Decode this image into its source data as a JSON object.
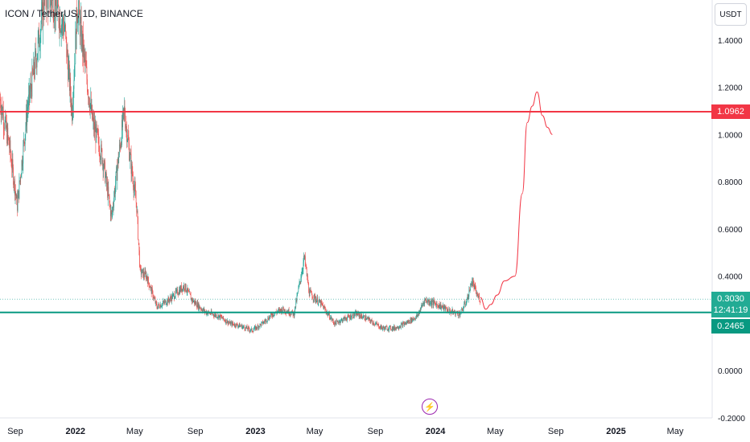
{
  "header": {
    "title": "ICON / TetherUS, 1D, BINANCE"
  },
  "axis_unit": "USDT",
  "colors": {
    "up": "#26a69a",
    "down": "#ef5350",
    "resistance": "#f23645",
    "support": "#089981",
    "projection": "#f23645",
    "event": "#9c27b0"
  },
  "chart_data": {
    "type": "candlestick",
    "ylim": [
      -0.2,
      1.6
    ],
    "y_ticks": [
      -0.2,
      0.0,
      0.2,
      0.4,
      0.6,
      0.8,
      1.0,
      1.2,
      1.4
    ],
    "y_tick_labels": [
      "-0.2000",
      "0.0000",
      "0.2000",
      "0.4000",
      "0.6000",
      "0.8000",
      "1.0000",
      "1.2000",
      "1.4000"
    ],
    "x_range": [
      "2021-08-01",
      "2025-07-15"
    ],
    "x_ticks": [
      {
        "date": "2021-09-01",
        "label": "Sep",
        "bold": false
      },
      {
        "date": "2022-01-01",
        "label": "2022",
        "bold": true
      },
      {
        "date": "2022-05-01",
        "label": "May",
        "bold": false
      },
      {
        "date": "2022-09-01",
        "label": "Sep",
        "bold": false
      },
      {
        "date": "2023-01-01",
        "label": "2023",
        "bold": true
      },
      {
        "date": "2023-05-01",
        "label": "May",
        "bold": false
      },
      {
        "date": "2023-09-01",
        "label": "Sep",
        "bold": false
      },
      {
        "date": "2024-01-01",
        "label": "2024",
        "bold": true
      },
      {
        "date": "2024-05-01",
        "label": "May",
        "bold": false
      },
      {
        "date": "2024-09-01",
        "label": "Sep",
        "bold": false
      },
      {
        "date": "2025-01-01",
        "label": "2025",
        "bold": true
      },
      {
        "date": "2025-05-01",
        "label": "May",
        "bold": false
      }
    ],
    "horizontal_lines": [
      {
        "name": "resistance",
        "value": 1.0962,
        "label": "1.0962"
      },
      {
        "name": "support",
        "value": 0.2465,
        "label": "0.2465"
      }
    ],
    "current_price": {
      "value": 0.303,
      "label": "0.3030",
      "countdown": "12:41:19"
    },
    "price_path": [
      [
        "2021-08-01",
        1.15
      ],
      [
        "2021-08-20",
        0.95
      ],
      [
        "2021-09-05",
        0.7
      ],
      [
        "2021-09-25",
        1.1
      ],
      [
        "2021-10-15",
        1.35
      ],
      [
        "2021-11-01",
        1.6
      ],
      [
        "2021-11-20",
        1.55
      ],
      [
        "2021-12-10",
        1.45
      ],
      [
        "2021-12-25",
        1.1
      ],
      [
        "2022-01-05",
        1.55
      ],
      [
        "2022-01-20",
        1.3
      ],
      [
        "2022-02-05",
        1.05
      ],
      [
        "2022-02-25",
        0.9
      ],
      [
        "2022-03-15",
        0.65
      ],
      [
        "2022-04-01",
        0.95
      ],
      [
        "2022-04-10",
        1.1
      ],
      [
        "2022-04-25",
        0.85
      ],
      [
        "2022-05-05",
        0.7
      ],
      [
        "2022-05-12",
        0.42
      ],
      [
        "2022-05-25",
        0.4
      ],
      [
        "2022-06-15",
        0.27
      ],
      [
        "2022-07-10",
        0.3
      ],
      [
        "2022-08-10",
        0.36
      ],
      [
        "2022-08-25",
        0.3
      ],
      [
        "2022-09-20",
        0.25
      ],
      [
        "2022-10-20",
        0.23
      ],
      [
        "2022-11-10",
        0.2
      ],
      [
        "2022-12-01",
        0.19
      ],
      [
        "2022-12-25",
        0.17
      ],
      [
        "2023-01-15",
        0.2
      ],
      [
        "2023-02-05",
        0.24
      ],
      [
        "2023-02-25",
        0.26
      ],
      [
        "2023-03-20",
        0.24
      ],
      [
        "2023-04-10",
        0.48
      ],
      [
        "2023-04-20",
        0.33
      ],
      [
        "2023-05-15",
        0.28
      ],
      [
        "2023-06-10",
        0.2
      ],
      [
        "2023-07-01",
        0.22
      ],
      [
        "2023-07-25",
        0.24
      ],
      [
        "2023-08-15",
        0.22
      ],
      [
        "2023-09-15",
        0.18
      ],
      [
        "2023-10-10",
        0.18
      ],
      [
        "2023-11-01",
        0.2
      ],
      [
        "2023-11-25",
        0.23
      ],
      [
        "2023-12-10",
        0.3
      ],
      [
        "2024-01-05",
        0.28
      ],
      [
        "2024-02-01",
        0.25
      ],
      [
        "2024-02-20",
        0.24
      ],
      [
        "2024-03-05",
        0.3
      ],
      [
        "2024-03-15",
        0.38
      ],
      [
        "2024-03-25",
        0.32
      ],
      [
        "2024-04-01",
        0.3
      ]
    ],
    "projection": [
      [
        "2024-04-01",
        0.31
      ],
      [
        "2024-04-12",
        0.26
      ],
      [
        "2024-04-22",
        0.28
      ],
      [
        "2024-05-05",
        0.32
      ],
      [
        "2024-05-20",
        0.38
      ],
      [
        "2024-06-10",
        0.4
      ],
      [
        "2024-06-25",
        0.75
      ],
      [
        "2024-07-05",
        1.05
      ],
      [
        "2024-07-15",
        1.12
      ],
      [
        "2024-07-25",
        1.18
      ],
      [
        "2024-08-05",
        1.08
      ],
      [
        "2024-08-15",
        1.03
      ],
      [
        "2024-08-25",
        1.0
      ]
    ]
  }
}
